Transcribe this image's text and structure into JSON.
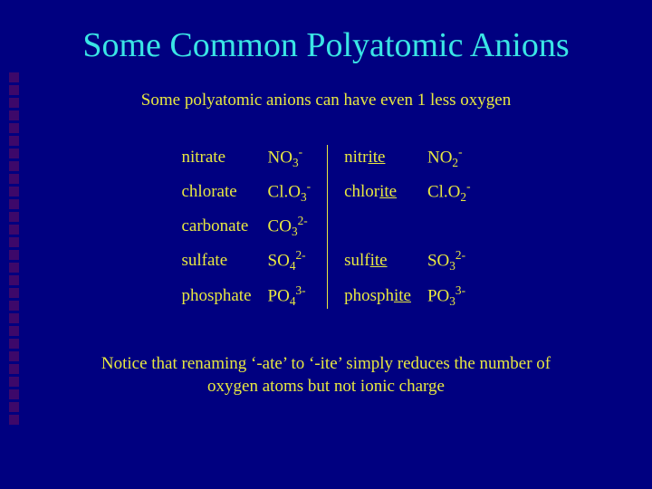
{
  "colors": {
    "background": "#000080",
    "title": "#3ae5e5",
    "body_text": "#e8e840",
    "decor_square": "rgba(220,30,50,0.28)",
    "divider": "#e8e840"
  },
  "typography": {
    "title_fontsize": 38,
    "body_fontsize": 19,
    "font_family": "Times New Roman"
  },
  "decor": {
    "square_count": 28
  },
  "title": "Some Common Polyatomic Anions",
  "subtitle": "Some polyatomic anions can have even 1 less oxygen",
  "table": {
    "rows": [
      {
        "leftName": "nitrate",
        "leftFormula": {
          "base": "NO",
          "sub": "3",
          "sup": "-"
        },
        "rightName": {
          "pre": "nitr",
          "ite": "ite"
        },
        "rightFormula": {
          "base": "NO",
          "sub": "2",
          "sup": "-"
        }
      },
      {
        "leftName": "chlorate",
        "leftFormula": {
          "base": "Cl.O",
          "sub": "3",
          "sup": "-"
        },
        "rightName": {
          "pre": "chlor",
          "ite": "ite"
        },
        "rightFormula": {
          "base": "Cl.O",
          "sub": "2",
          "sup": "-"
        }
      },
      {
        "leftName": "carbonate",
        "leftFormula": {
          "base": "CO",
          "sub": "3",
          "sup": "2-"
        },
        "rightName": null,
        "rightFormula": null
      },
      {
        "leftName": "sulfate",
        "leftFormula": {
          "base": "SO",
          "sub": "4",
          "sup": "2-"
        },
        "rightName": {
          "pre": "sulf",
          "ite": "ite"
        },
        "rightFormula": {
          "base": "SO",
          "sub": "3",
          "sup": "2-"
        }
      },
      {
        "leftName": "phosphate",
        "leftFormula": {
          "base": "PO",
          "sub": "4",
          "sup": "3-"
        },
        "rightName": {
          "pre": "phosph",
          "ite": "ite"
        },
        "rightFormula": {
          "base": "PO",
          "sub": "3",
          "sup": "3-"
        }
      }
    ]
  },
  "footnote": "Notice that renaming ‘-ate’ to ‘-ite’ simply reduces the number of oxygen atoms but not ionic charge"
}
